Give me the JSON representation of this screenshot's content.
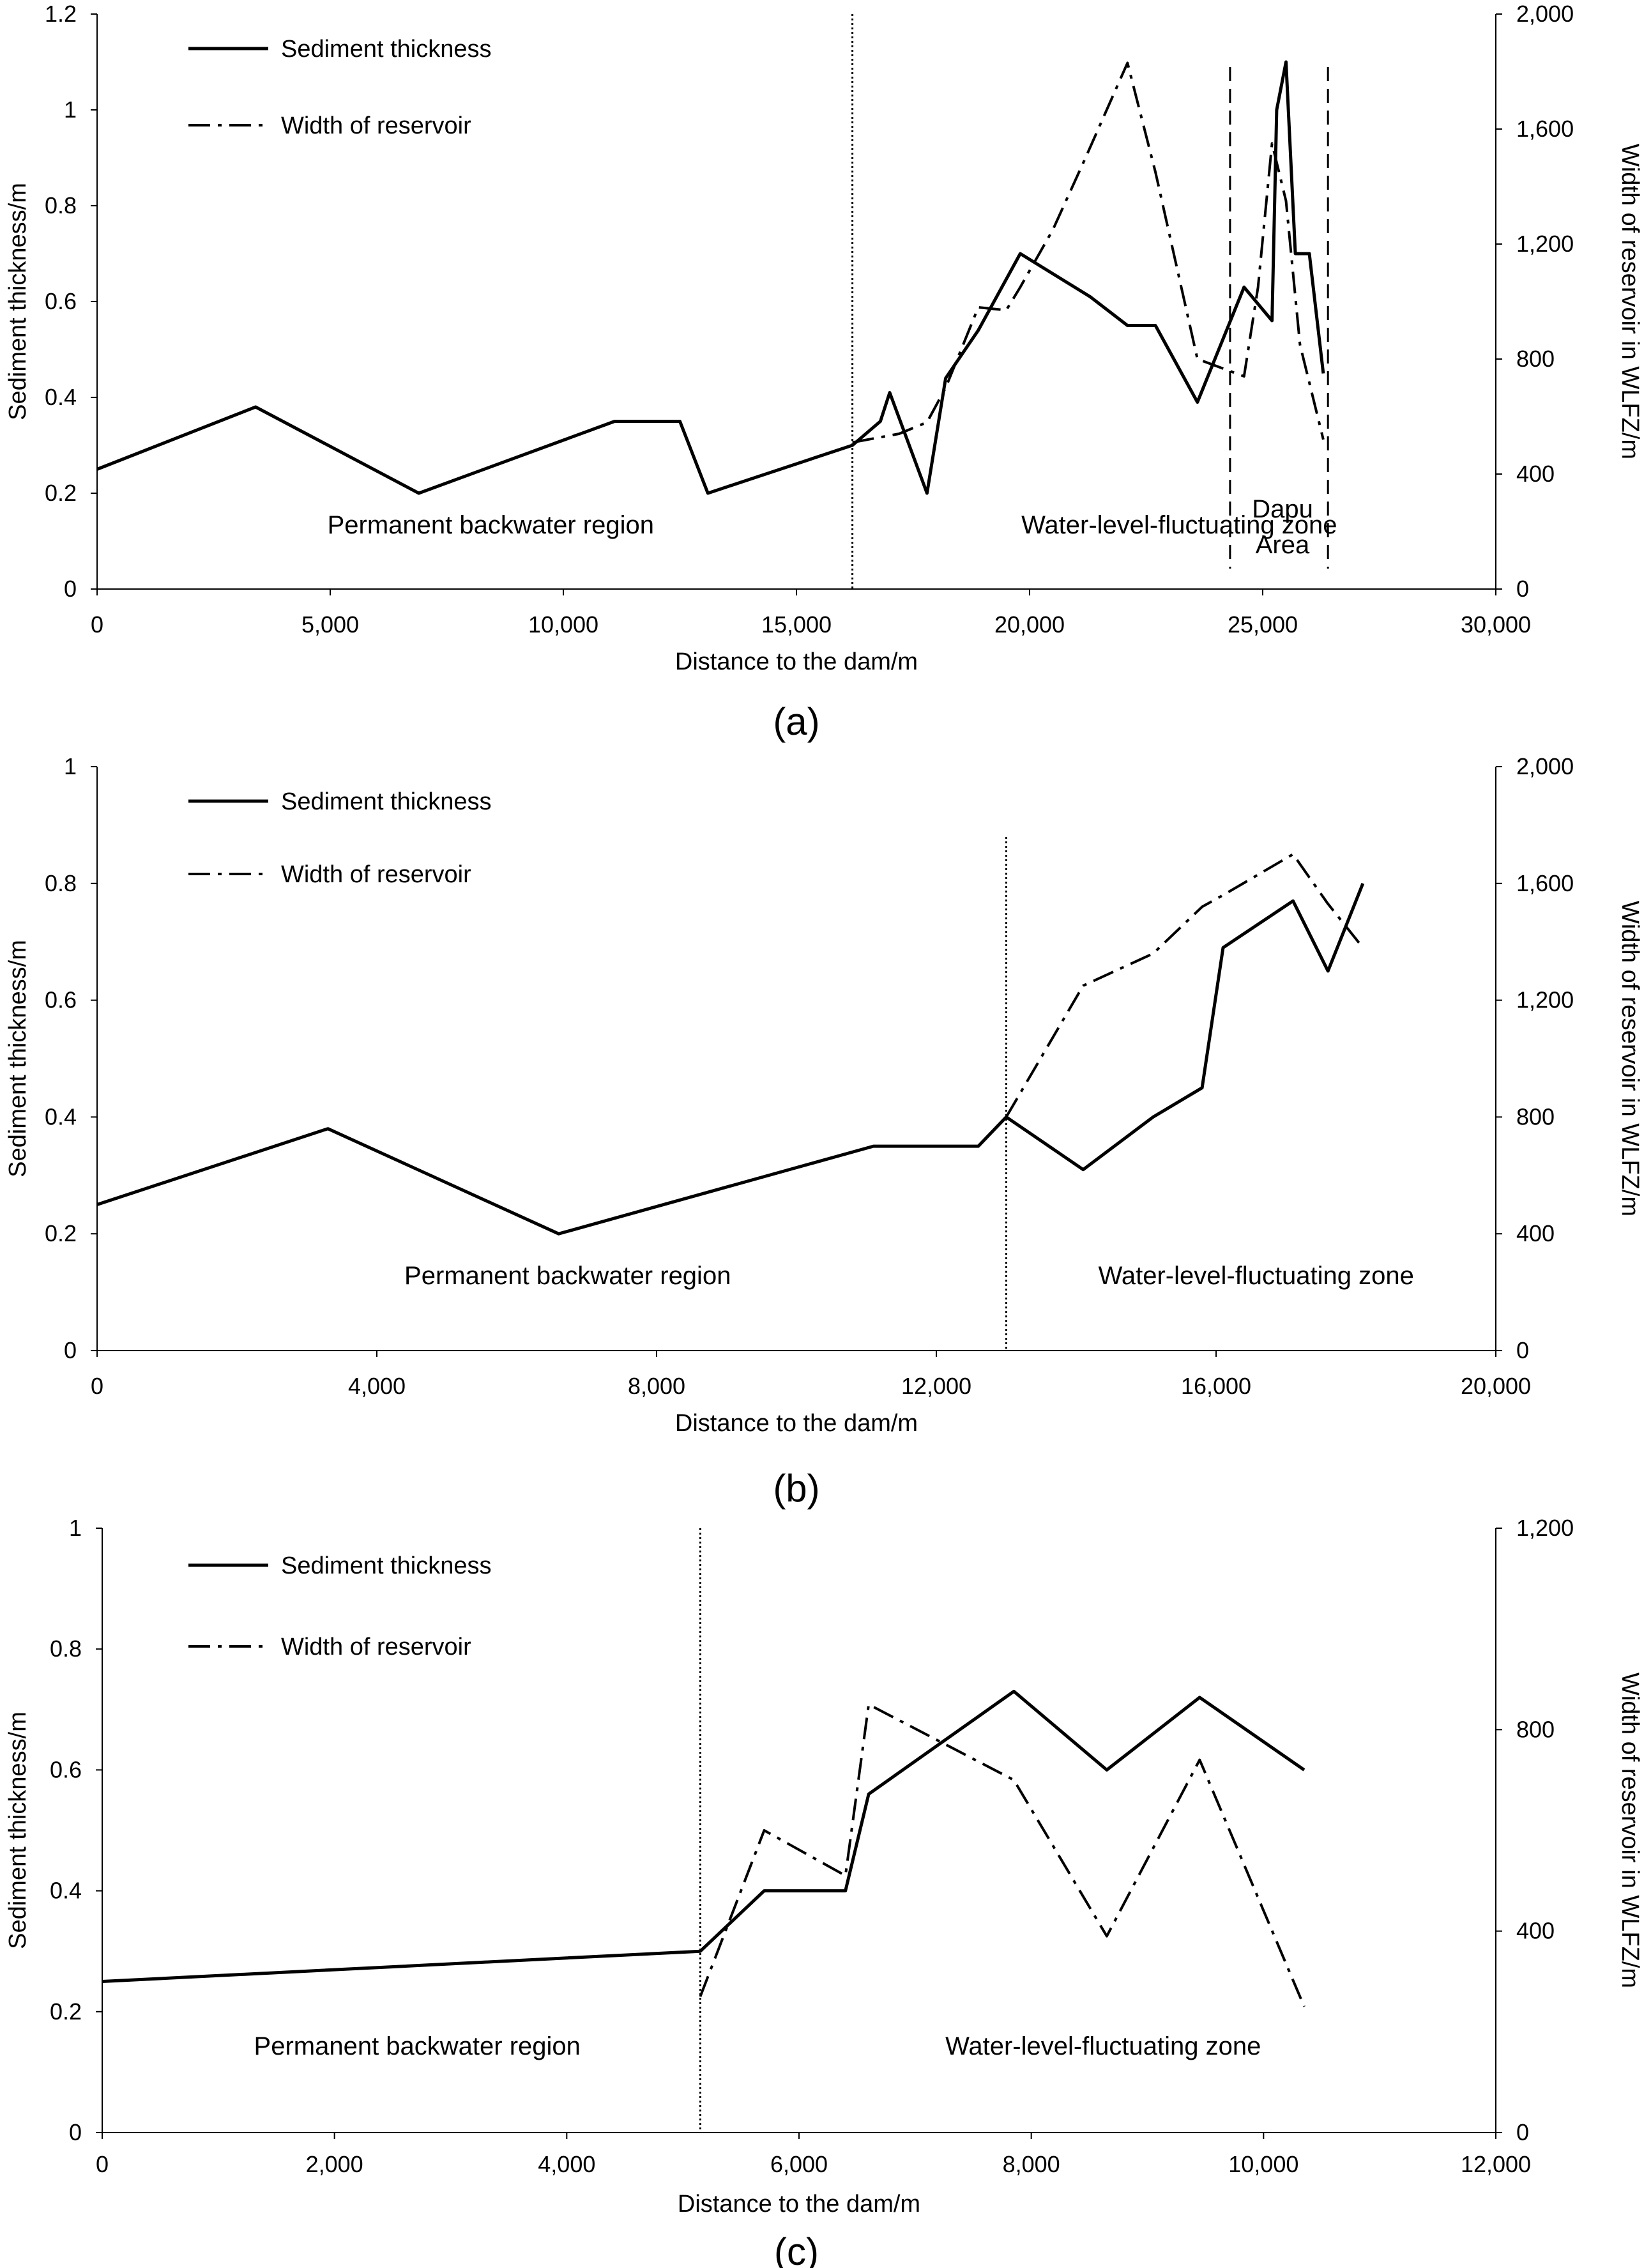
{
  "chart_data": [
    {
      "type": "line",
      "panel_label": "(a)",
      "xlabel": "Distance to the dam/m",
      "ylabel": "Sediment thickness/m",
      "y2label": "Width of reservoir in WLFZ/m",
      "xlim": [
        0,
        30000
      ],
      "ylim": [
        0,
        1.2
      ],
      "y2lim": [
        0,
        2000
      ],
      "x_ticks": [
        "0",
        "5,000",
        "10,000",
        "15,000",
        "20,000",
        "25,000",
        "30,000"
      ],
      "y_ticks": [
        "0",
        "0.2",
        "0.4",
        "0.6",
        "0.8",
        "1",
        "1.2"
      ],
      "y2_ticks": [
        "0",
        "400",
        "800",
        "1,200",
        "1,600",
        "2,000"
      ],
      "legend": [
        "Sediment thickness",
        "Width of reservoir"
      ],
      "series": [
        {
          "name": "Sediment thickness",
          "axis": "left",
          "x": [
            0,
            3400,
            6900,
            11100,
            12500,
            13100,
            16200,
            16800,
            17000,
            17800,
            18200,
            18900,
            19800,
            21300,
            22100,
            22700,
            23600,
            24600,
            25200,
            25300,
            25500,
            25700,
            26000,
            26300
          ],
          "y": [
            0.25,
            0.38,
            0.2,
            0.35,
            0.35,
            0.2,
            0.3,
            0.35,
            0.41,
            0.2,
            0.44,
            0.54,
            0.7,
            0.61,
            0.55,
            0.55,
            0.39,
            0.63,
            0.56,
            1.0,
            1.1,
            0.7,
            0.7,
            0.45
          ]
        },
        {
          "name": "Width of reservoir",
          "axis": "right",
          "x": [
            16200,
            17200,
            17800,
            18200,
            18900,
            19500,
            19800,
            20500,
            21200,
            22100,
            22700,
            23600,
            24600,
            24900,
            25200,
            25500,
            25800,
            26300
          ],
          "y": [
            510,
            540,
            580,
            700,
            980,
            970,
            1050,
            1250,
            1500,
            1830,
            1450,
            800,
            740,
            1050,
            1550,
            1350,
            850,
            520
          ]
        }
      ],
      "boundary_x": 16200,
      "dapu_bounds_x": [
        24300,
        26400
      ],
      "annotations": {
        "left_region": "Permanent backwater region",
        "right_region": "Water-level-fluctuating zone",
        "dapu": "Dapu",
        "area": "Area"
      }
    },
    {
      "type": "line",
      "panel_label": "(b)",
      "xlabel": "Distance to the dam/m",
      "ylabel": "Sediment thickness/m",
      "y2label": "Width of reservoir in WLFZ/m",
      "xlim": [
        0,
        20000
      ],
      "ylim": [
        0,
        1
      ],
      "y2lim": [
        0,
        2000
      ],
      "x_ticks": [
        "0",
        "4,000",
        "8,000",
        "12,000",
        "16,000",
        "20,000"
      ],
      "y_ticks": [
        "0",
        "0.2",
        "0.4",
        "0.6",
        "0.8",
        "1"
      ],
      "y2_ticks": [
        "0",
        "400",
        "800",
        "1,200",
        "1,600",
        "2,000"
      ],
      "legend": [
        "Sediment thickness",
        "Width of reservoir"
      ],
      "series": [
        {
          "name": "Sediment thickness",
          "axis": "left",
          "x": [
            0,
            3300,
            6600,
            11100,
            12600,
            13000,
            14100,
            15100,
            15800,
            16100,
            17100,
            17600,
            18100
          ],
          "y": [
            0.25,
            0.38,
            0.2,
            0.35,
            0.35,
            0.4,
            0.31,
            0.4,
            0.45,
            0.69,
            0.77,
            0.65,
            0.8
          ]
        },
        {
          "name": "Width of reservoir",
          "axis": "right",
          "x": [
            13000,
            14100,
            15100,
            15800,
            16100,
            17100,
            17600,
            18100
          ],
          "y": [
            800,
            1250,
            1360,
            1520,
            1560,
            1700,
            1530,
            1380
          ]
        }
      ],
      "boundary_x": 13000,
      "annotations": {
        "left_region": "Permanent backwater region",
        "right_region": "Water-level-fluctuating zone"
      }
    },
    {
      "type": "line",
      "panel_label": "(c)",
      "xlabel": "Distance to the dam/m",
      "ylabel": "Sediment thickness/m",
      "y2label": "Width of reservoir in WLFZ/m",
      "xlim": [
        0,
        12000
      ],
      "ylim": [
        0,
        1
      ],
      "y2lim": [
        0,
        1200
      ],
      "x_ticks": [
        "0",
        "2,000",
        "4,000",
        "6,000",
        "8,000",
        "10,000",
        "12,000"
      ],
      "y_ticks": [
        "0",
        "0.2",
        "0.4",
        "0.6",
        "0.8",
        "1"
      ],
      "y2_ticks": [
        "0",
        "400",
        "800",
        "1,200"
      ],
      "legend": [
        "Sediment thickness",
        "Width of reservoir"
      ],
      "series": [
        {
          "name": "Sediment thickness",
          "axis": "left",
          "x": [
            0,
            5150,
            5700,
            6400,
            6600,
            7850,
            8650,
            9450,
            10350
          ],
          "y": [
            0.25,
            0.3,
            0.4,
            0.4,
            0.56,
            0.73,
            0.6,
            0.72,
            0.6
          ]
        },
        {
          "name": "Width of reservoir",
          "axis": "right",
          "x": [
            5150,
            5700,
            6400,
            6600,
            7850,
            8650,
            9450,
            10350
          ],
          "y": [
            270,
            600,
            510,
            850,
            700,
            390,
            740,
            250
          ]
        }
      ],
      "boundary_x": 5150,
      "annotations": {
        "left_region": "Permanent backwater region",
        "right_region": "Water-level-fluctuating zone"
      }
    }
  ]
}
